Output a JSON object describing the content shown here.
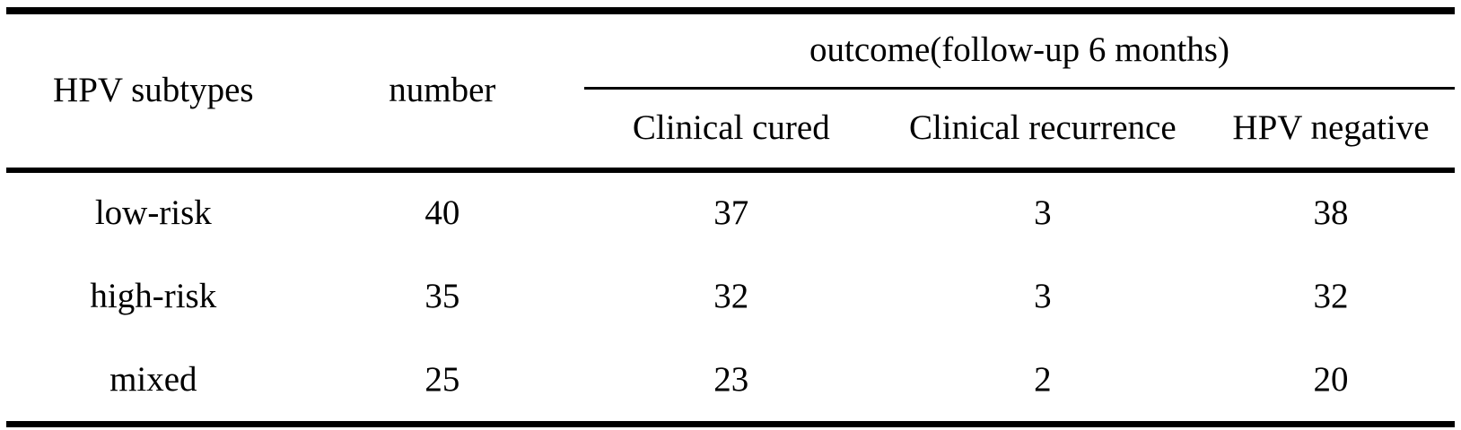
{
  "table": {
    "header": {
      "hpv_subtypes": "HPV subtypes",
      "number": "number",
      "outcome_group": "outcome(follow-up 6 months)",
      "sub_columns": {
        "clinical_cured": "Clinical cured",
        "clinical_recurrence": "Clinical recurrence",
        "hpv_negative": "HPV negative"
      }
    },
    "rows": [
      {
        "subtype": "low-risk",
        "number": "40",
        "clinical_cured": "37",
        "clinical_recurrence": "3",
        "hpv_negative": "38"
      },
      {
        "subtype": "high-risk",
        "number": "35",
        "clinical_cured": "32",
        "clinical_recurrence": "3",
        "hpv_negative": "32"
      },
      {
        "subtype": "mixed",
        "number": "25",
        "clinical_cured": "23",
        "clinical_recurrence": "2",
        "hpv_negative": "20"
      }
    ]
  },
  "colors": {
    "text": "#000000",
    "background": "#ffffff",
    "rule": "#000000"
  },
  "chart_data": {
    "type": "table",
    "title": "",
    "columns": [
      "HPV subtypes",
      "number",
      "Clinical cured",
      "Clinical recurrence",
      "HPV negative"
    ],
    "column_group": {
      "label": "outcome(follow-up 6 months)",
      "spans": [
        "Clinical cured",
        "Clinical recurrence",
        "HPV negative"
      ]
    },
    "rows": [
      [
        "low-risk",
        40,
        37,
        3,
        38
      ],
      [
        "high-risk",
        35,
        32,
        3,
        32
      ],
      [
        "mixed",
        25,
        23,
        2,
        20
      ]
    ]
  }
}
